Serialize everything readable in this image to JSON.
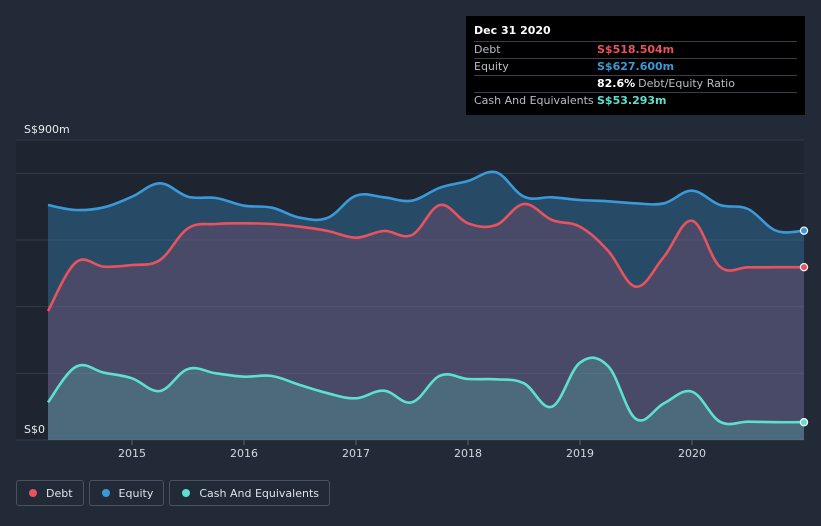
{
  "tooltip": {
    "date": "Dec 31 2020",
    "rows": [
      {
        "label": "Debt",
        "value": "S$518.504m",
        "color": "#e9525f"
      },
      {
        "label": "Equity",
        "value": "S$627.600m",
        "color": "#3a9ad9"
      },
      {
        "ratio_value": "82.6%",
        "ratio_label": "Debt/Equity Ratio"
      },
      {
        "label": "Cash And Equivalents",
        "value": "S$53.293m",
        "color": "#5de0cf"
      }
    ]
  },
  "legend": [
    {
      "label": "Debt",
      "color": "#e9525f"
    },
    {
      "label": "Equity",
      "color": "#3a9ad9"
    },
    {
      "label": "Cash And Equivalents",
      "color": "#5de0cf"
    }
  ],
  "chart_data": {
    "type": "area",
    "y_axis_top_label": "S$900m",
    "y_axis_bottom_label": "S$0",
    "ylim": [
      0,
      900
    ],
    "xlim": [
      2014.25,
      2021.0
    ],
    "grid": true,
    "legend_position": "bottom-left",
    "x_ticks": [
      2015,
      2016,
      2017,
      2018,
      2019,
      2020
    ],
    "x_tick_labels": [
      "2015",
      "2016",
      "2017",
      "2018",
      "2019",
      "2020"
    ],
    "series": [
      {
        "name": "Equity",
        "color": "#3a9ad9",
        "points": [
          [
            2014.25,
            705
          ],
          [
            2014.5,
            690
          ],
          [
            2014.75,
            698
          ],
          [
            2015.0,
            730
          ],
          [
            2015.25,
            770
          ],
          [
            2015.5,
            730
          ],
          [
            2015.75,
            726
          ],
          [
            2016.0,
            703
          ],
          [
            2016.25,
            697
          ],
          [
            2016.5,
            667
          ],
          [
            2016.75,
            667
          ],
          [
            2017.0,
            733
          ],
          [
            2017.25,
            728
          ],
          [
            2017.5,
            718
          ],
          [
            2017.75,
            757
          ],
          [
            2018.0,
            777
          ],
          [
            2018.25,
            803
          ],
          [
            2018.5,
            730
          ],
          [
            2018.75,
            728
          ],
          [
            2019.0,
            720
          ],
          [
            2019.25,
            716
          ],
          [
            2019.5,
            710
          ],
          [
            2019.75,
            710
          ],
          [
            2020.0,
            748
          ],
          [
            2020.25,
            705
          ],
          [
            2020.5,
            693
          ],
          [
            2020.75,
            628
          ],
          [
            2021.0,
            628
          ]
        ]
      },
      {
        "name": "Debt",
        "color": "#e9525f",
        "points": [
          [
            2014.25,
            387
          ],
          [
            2014.5,
            533
          ],
          [
            2014.75,
            520
          ],
          [
            2015.0,
            525
          ],
          [
            2015.25,
            540
          ],
          [
            2015.5,
            635
          ],
          [
            2015.75,
            648
          ],
          [
            2016.0,
            650
          ],
          [
            2016.25,
            648
          ],
          [
            2016.5,
            640
          ],
          [
            2016.75,
            627
          ],
          [
            2017.0,
            607
          ],
          [
            2017.25,
            627
          ],
          [
            2017.5,
            615
          ],
          [
            2017.75,
            705
          ],
          [
            2018.0,
            650
          ],
          [
            2018.25,
            645
          ],
          [
            2018.5,
            708
          ],
          [
            2018.75,
            660
          ],
          [
            2019.0,
            640
          ],
          [
            2019.25,
            568
          ],
          [
            2019.5,
            460
          ],
          [
            2019.75,
            550
          ],
          [
            2020.0,
            658
          ],
          [
            2020.25,
            520
          ],
          [
            2020.5,
            518
          ],
          [
            2020.75,
            518.504
          ],
          [
            2021.0,
            518.504
          ]
        ]
      },
      {
        "name": "Cash And Equivalents",
        "color": "#5de0cf",
        "points": [
          [
            2014.25,
            113
          ],
          [
            2014.5,
            220
          ],
          [
            2014.75,
            202
          ],
          [
            2015.0,
            185
          ],
          [
            2015.25,
            147
          ],
          [
            2015.5,
            213
          ],
          [
            2015.75,
            200
          ],
          [
            2016.0,
            190
          ],
          [
            2016.25,
            192
          ],
          [
            2016.5,
            165
          ],
          [
            2016.75,
            140
          ],
          [
            2017.0,
            125
          ],
          [
            2017.25,
            148
          ],
          [
            2017.5,
            113
          ],
          [
            2017.75,
            193
          ],
          [
            2018.0,
            183
          ],
          [
            2018.25,
            182
          ],
          [
            2018.5,
            170
          ],
          [
            2018.75,
            100
          ],
          [
            2019.0,
            232
          ],
          [
            2019.25,
            222
          ],
          [
            2019.5,
            63
          ],
          [
            2019.75,
            110
          ],
          [
            2020.0,
            145
          ],
          [
            2020.25,
            55
          ],
          [
            2020.5,
            55
          ],
          [
            2020.75,
            53.293
          ],
          [
            2021.0,
            53.293
          ]
        ]
      }
    ]
  }
}
